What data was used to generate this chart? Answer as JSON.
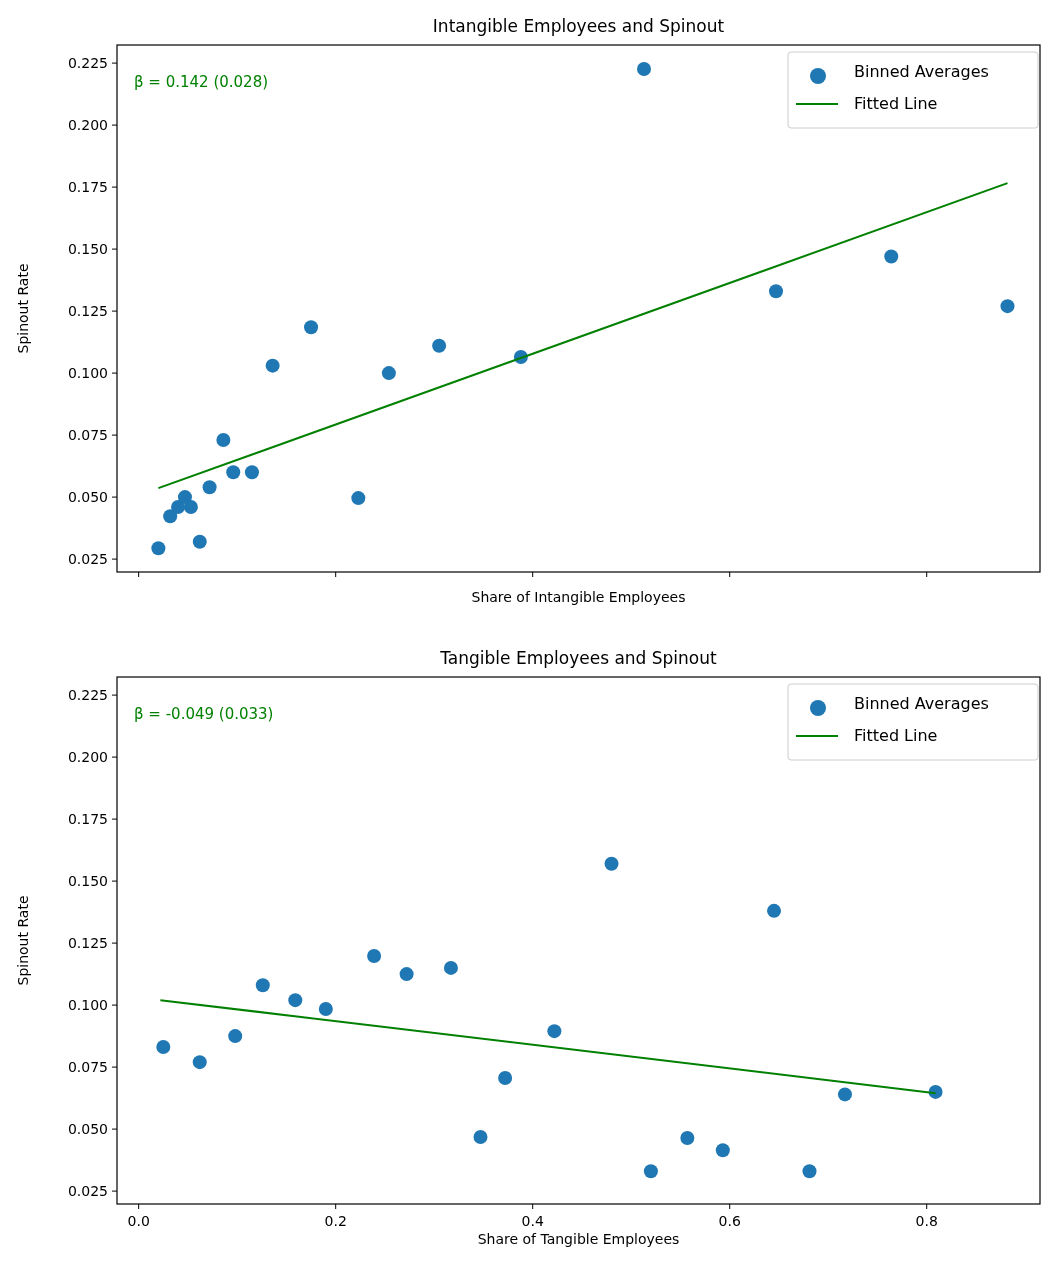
{
  "chart_data": [
    {
      "type": "scatter",
      "title": "Intangible Employees and Spinout",
      "xlabel": "Share of Intangible Employees",
      "ylabel": "Spinout Rate",
      "annotations": [
        "β = 0.142 (0.028)"
      ],
      "xlim": [
        -0.022,
        0.915
      ],
      "xticks": [
        0,
        0.2,
        0.4,
        0.6,
        0.8
      ],
      "ylim": [
        0.0198,
        0.2323
      ],
      "yticks": [
        {
          "value": 0.025,
          "label": "0.025"
        },
        {
          "value": 0.05,
          "label": "0.050"
        },
        {
          "value": 0.075,
          "label": "0.075"
        },
        {
          "value": 0.1,
          "label": "0.100"
        },
        {
          "value": 0.125,
          "label": "0.125"
        },
        {
          "value": 0.15,
          "label": "0.150"
        },
        {
          "value": 0.175,
          "label": "0.175"
        },
        {
          "value": 0.2,
          "label": "0.200"
        },
        {
          "value": 0.225,
          "label": "0.225"
        }
      ],
      "tick_labels": "y",
      "legend": "top right",
      "grid": false,
      "series": [
        {
          "name": "Binned Averages",
          "marker": "circle",
          "color": "#1f77b4",
          "x": [
            0.02,
            0.032,
            0.04,
            0.047,
            0.053,
            0.062,
            0.072,
            0.086,
            0.096,
            0.115,
            0.136,
            0.175,
            0.223,
            0.254,
            0.305,
            0.388,
            0.513,
            0.647,
            0.764,
            0.882
          ],
          "values": [
            0.0294,
            0.0423,
            0.046,
            0.05,
            0.046,
            0.032,
            0.054,
            0.073,
            0.06,
            0.06,
            0.103,
            0.1185,
            0.0496,
            0.1,
            0.111,
            0.1065,
            0.2226,
            0.133,
            0.147,
            0.127
          ]
        },
        {
          "name": "Fitted Line",
          "type": "line",
          "color": "#008000",
          "x": [
            0.02,
            0.882
          ],
          "values": [
            0.0536,
            0.1766
          ]
        }
      ]
    },
    {
      "type": "scatter",
      "title": "Tangible Employees and Spinout",
      "xlabel": "Share of Tangible Employees",
      "ylabel": "Spinout Rate",
      "annotations": [
        "β = -0.049 (0.033)"
      ],
      "xlim": [
        -0.022,
        0.915
      ],
      "xticks": [
        {
          "value": 0,
          "label": "0.0"
        },
        {
          "value": 0.2,
          "label": "0.2"
        },
        {
          "value": 0.4,
          "label": "0.4"
        },
        {
          "value": 0.6,
          "label": "0.6"
        },
        {
          "value": 0.8,
          "label": "0.8"
        }
      ],
      "ylim": [
        0.0198,
        0.2323
      ],
      "yticks": [
        {
          "value": 0.025,
          "label": "0.025"
        },
        {
          "value": 0.05,
          "label": "0.050"
        },
        {
          "value": 0.075,
          "label": "0.075"
        },
        {
          "value": 0.1,
          "label": "0.100"
        },
        {
          "value": 0.125,
          "label": "0.125"
        },
        {
          "value": 0.15,
          "label": "0.150"
        },
        {
          "value": 0.175,
          "label": "0.175"
        },
        {
          "value": 0.2,
          "label": "0.200"
        },
        {
          "value": 0.225,
          "label": "0.225"
        }
      ],
      "legend": "top right",
      "grid": false,
      "series": [
        {
          "name": "Binned Averages",
          "marker": "circle",
          "color": "#1f77b4",
          "x": [
            0.025,
            0.062,
            0.098,
            0.126,
            0.159,
            0.19,
            0.239,
            0.272,
            0.317,
            0.347,
            0.372,
            0.422,
            0.48,
            0.52,
            0.557,
            0.593,
            0.645,
            0.681,
            0.717,
            0.809
          ],
          "values": [
            0.0831,
            0.077,
            0.0875,
            0.108,
            0.102,
            0.0984,
            0.1198,
            0.1125,
            0.115,
            0.0468,
            0.0706,
            0.0895,
            0.157,
            0.033,
            0.0464,
            0.0415,
            0.138,
            0.033,
            0.064,
            0.065
          ]
        },
        {
          "name": "Fitted Line",
          "type": "line",
          "color": "#008000",
          "x": [
            0.022,
            0.809
          ],
          "values": [
            0.102,
            0.0645
          ]
        }
      ]
    }
  ]
}
